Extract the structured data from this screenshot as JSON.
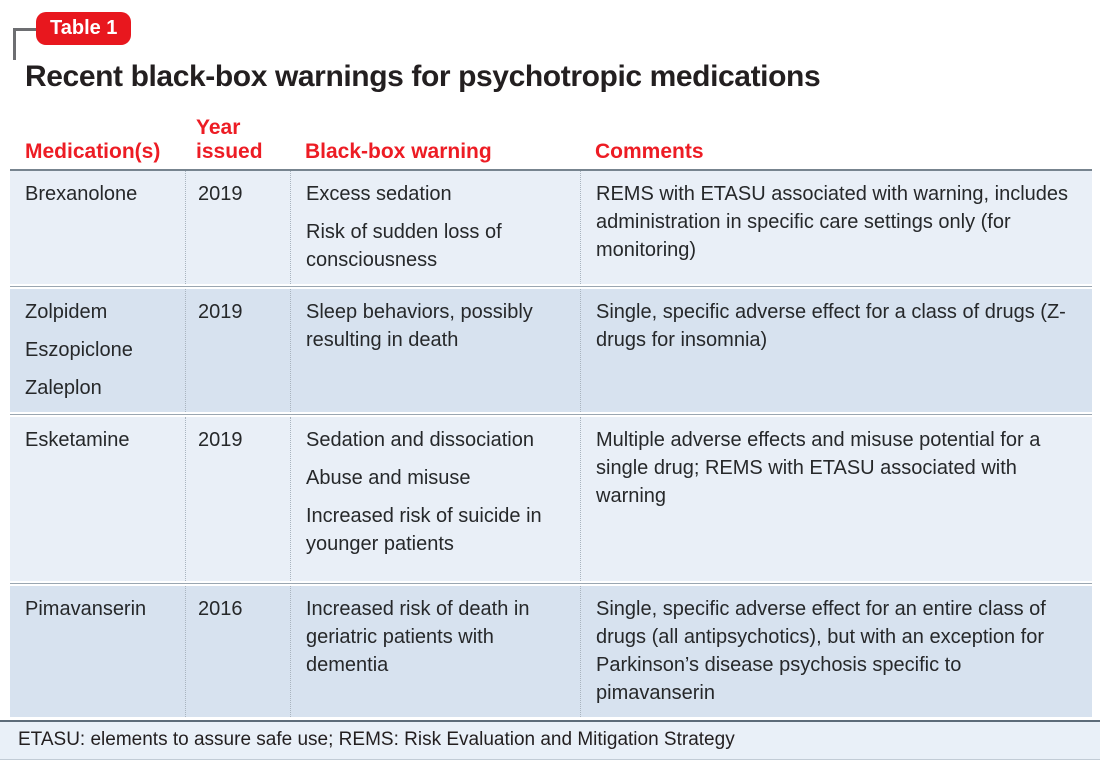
{
  "page": {
    "badge_label": "Table 1",
    "title": "Recent black-box warnings for psychotropic medications",
    "footnote": "ETASU: elements to assure safe use; REMS: Risk Evaluation and Mitigation Strategy"
  },
  "colors": {
    "badge_red": "#e8171e",
    "header_red": "#ed1c24",
    "row_light": "#e9eff7",
    "row_dark": "#d7e2ef",
    "footer_bg": "#e9f0f8",
    "title_text": "#231f20",
    "body_text": "#26282a"
  },
  "table": {
    "headers": {
      "medications": "Medication(s)",
      "year": "Year issued",
      "warning": "Black-box warning",
      "comments": "Comments"
    },
    "rows": [
      {
        "medications": [
          "Brexanolone"
        ],
        "year": "2019",
        "warnings": [
          "Excess sedation",
          "Risk of sudden loss of consciousness"
        ],
        "comments": "REMS with ETASU associated with warning, includes administration in specific care settings only (for monitoring)"
      },
      {
        "medications": [
          "Zolpidem",
          "Eszopiclone",
          "Zaleplon"
        ],
        "year": "2019",
        "warnings": [
          "Sleep behaviors, possibly resulting in death"
        ],
        "comments": "Single, specific adverse effect for a class of drugs (Z-drugs for insomnia)"
      },
      {
        "medications": [
          "Esketamine"
        ],
        "year": "2019",
        "warnings": [
          "Sedation and dissociation",
          "Abuse and misuse",
          "Increased risk of suicide in younger patients"
        ],
        "comments": "Multiple adverse effects and misuse potential for a single drug; REMS with ETASU associated with warning"
      },
      {
        "medications": [
          "Pimavanserin"
        ],
        "year": "2016",
        "warnings": [
          "Increased risk of death in geriatric patients with dementia"
        ],
        "comments": "Single, specific adverse effect for an entire class of drugs (all antipsychotics), but with an exception for Parkinson’s disease psychosis specific to pimavanserin"
      }
    ]
  }
}
